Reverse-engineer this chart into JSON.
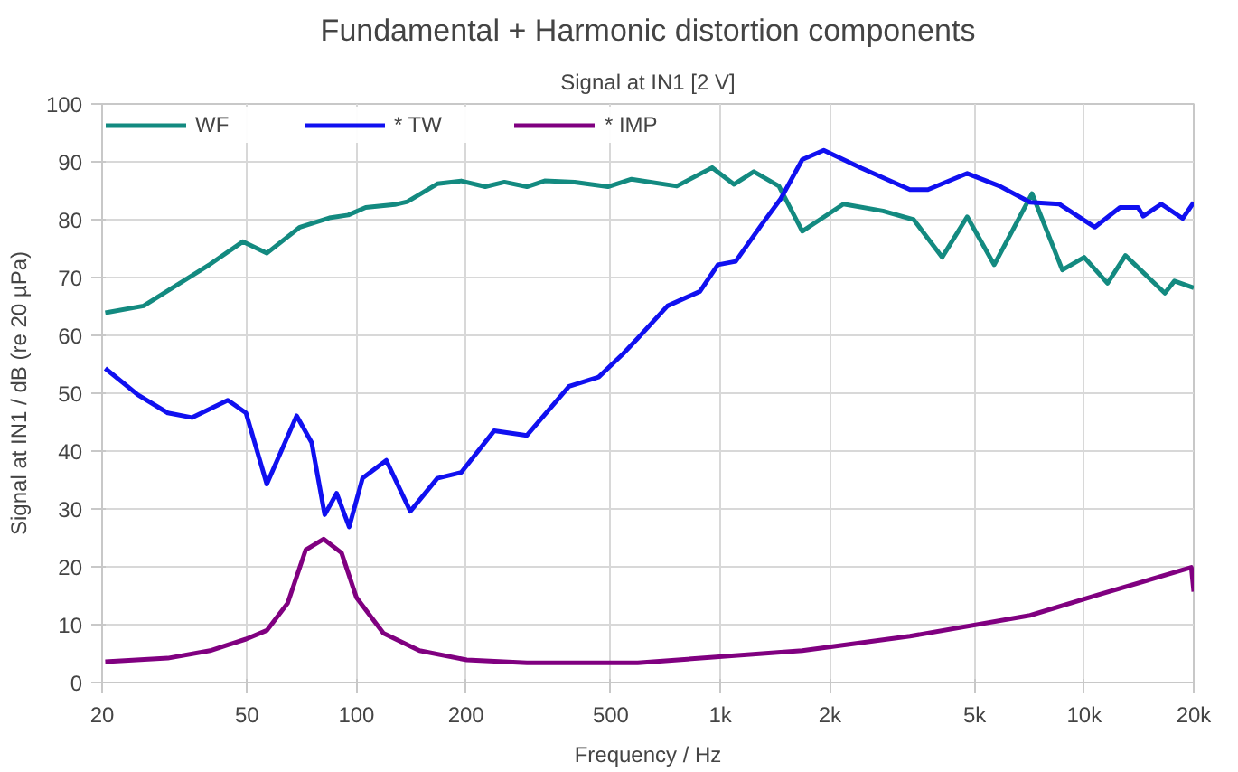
{
  "chart_data": {
    "type": "line",
    "title": "Fundamental + Harmonic distortion components",
    "subtitle": "Signal at IN1 [2 V]",
    "xlabel": "Frequency / Hz",
    "ylabel": "Signal at IN1 / dB (re 20 µPa)",
    "log": "x",
    "grid": true,
    "legend": "top",
    "line_style": "solid",
    "marker": "none",
    "xlim": [
      20,
      20000
    ],
    "xticks": [
      20,
      50,
      100,
      200,
      500,
      {
        "value": 1000,
        "label": "1k"
      },
      {
        "value": 2000,
        "label": "2k"
      },
      {
        "value": 5000,
        "label": "5k"
      },
      {
        "value": 10000,
        "label": "10k"
      },
      {
        "value": 20000,
        "label": "20k"
      }
    ],
    "ylim": [
      0,
      100
    ],
    "yticks": [
      0,
      10,
      20,
      30,
      40,
      50,
      60,
      70,
      80,
      90,
      100
    ],
    "series": [
      {
        "name": "WF",
        "color": "#138a80",
        "x": [
          20.4,
          26,
          30.3,
          39.6,
          48.7,
          56.7,
          69.9,
          84.2,
          94.9,
          106,
          127.5,
          138,
          166.8,
          194,
          226,
          255,
          294,
          329,
          398,
          491,
          570,
          759,
          950,
          1091,
          1236,
          1449,
          1680,
          2180,
          2800,
          3400,
          4070,
          4770,
          5660,
          7190,
          8710,
          10000,
          11590,
          12980,
          16660,
          17700,
          20000
        ],
        "values": [
          63.9,
          65.1,
          67.7,
          72.3,
          76.2,
          74.2,
          78.7,
          80.3,
          80.8,
          82.1,
          82.6,
          83.1,
          86.2,
          86.7,
          85.7,
          86.5,
          85.7,
          86.7,
          86.5,
          85.7,
          87,
          85.8,
          89,
          86.1,
          88.3,
          85.8,
          78,
          82.7,
          81.5,
          80,
          73.5,
          80.5,
          72.2,
          84.5,
          71.3,
          73.5,
          69,
          73.8,
          67.3,
          69.4,
          68.2
        ]
      },
      {
        "name": "* TW",
        "color": "#1010f0",
        "x": [
          20.4,
          25.1,
          30.3,
          35.3,
          44.3,
          49.7,
          56.7,
          68.5,
          75.3,
          81.8,
          88.2,
          95.5,
          103.9,
          120.8,
          140.6,
          166.8,
          194,
          239,
          294,
          384,
          463,
          540,
          593,
          716,
          879,
          985,
          1102,
          1294,
          1465,
          1680,
          1924,
          2443,
          3320,
          3720,
          4770,
          5860,
          7100,
          8530,
          10700,
          12540,
          14060,
          14530,
          16290,
          18660,
          20000
        ],
        "values": [
          54.3,
          49.7,
          46.6,
          45.8,
          48.8,
          46.6,
          34.3,
          46.1,
          41.5,
          29,
          32.7,
          26.9,
          35.3,
          38.4,
          29.6,
          35.3,
          36.3,
          43.5,
          42.7,
          51.2,
          52.8,
          56.8,
          59.5,
          65.1,
          67.6,
          72.2,
          72.8,
          79,
          83.6,
          90.4,
          92,
          88.9,
          85.2,
          85.2,
          88,
          85.8,
          83,
          82.7,
          78.7,
          82.1,
          82.1,
          80.6,
          82.7,
          80.2,
          83
        ]
      },
      {
        "name": "* IMP",
        "color": "#800080",
        "x": [
          20.4,
          30.3,
          39.6,
          49.7,
          56.7,
          64.7,
          72.5,
          81.2,
          91,
          100,
          118.6,
          149,
          201,
          294,
          593,
          1680,
          3320,
          7100,
          11000,
          19700,
          20000
        ],
        "values": [
          3.6,
          4.2,
          5.5,
          7.5,
          9,
          13.7,
          22.9,
          24.8,
          22.4,
          14.7,
          8.5,
          5.5,
          3.9,
          3.4,
          3.4,
          5.5,
          8,
          11.6,
          15.2,
          19.9,
          15.7
        ]
      }
    ]
  }
}
